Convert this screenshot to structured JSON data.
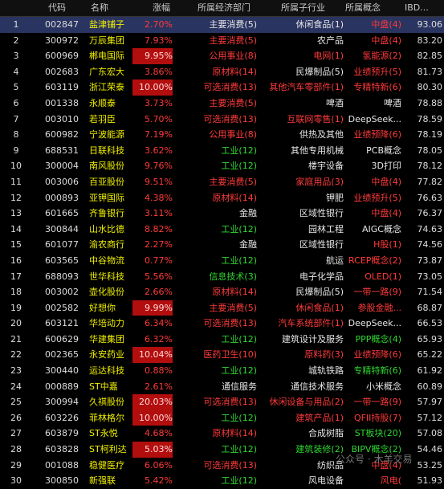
{
  "header": {
    "idx": "",
    "code": "代码",
    "name": "名称",
    "chg": "涨幅",
    "dept": "所属经济部门",
    "ind": "所属子行业",
    "con": "所属概念",
    "ibd": "IBD..."
  },
  "rows": [
    {
      "idx": "1",
      "code": "002847",
      "name": "盐津铺子",
      "chg": "2.70%",
      "dept": "主要消费(5)",
      "deptc": "white",
      "ind": "休闲食品(1)",
      "indc": "white",
      "con": "中盘(4)",
      "conc": "red",
      "ibd": "93.06",
      "sel": true
    },
    {
      "idx": "2",
      "code": "300972",
      "name": "万辰集团",
      "chg": "7.93%",
      "dept": "主要消费(5)",
      "deptc": "red",
      "ind": "农产品",
      "indc": "white",
      "con": "中盘(4)",
      "conc": "red",
      "ibd": "83.20"
    },
    {
      "idx": "3",
      "code": "600969",
      "name": "郴电国际",
      "chg": "9.95%",
      "hl": true,
      "dept": "公用事业(8)",
      "deptc": "red",
      "ind": "电网(1)",
      "indc": "red",
      "con": "氢能源(2)",
      "conc": "red",
      "ibd": "82.85"
    },
    {
      "idx": "4",
      "code": "002683",
      "name": "广东宏大",
      "chg": "3.86%",
      "dept": "原材料(14)",
      "deptc": "red",
      "ind": "民爆制品(5)",
      "indc": "white",
      "con": "业绩预升(5)",
      "conc": "red",
      "ibd": "81.73"
    },
    {
      "idx": "5",
      "code": "603119",
      "name": "浙江荣泰",
      "chg": "10.00%",
      "hl": true,
      "dept": "可选消费(13)",
      "deptc": "red",
      "ind": "其他汽车零部件(1)",
      "indc": "red",
      "con": "专精特新(6)",
      "conc": "red",
      "ibd": "80.30"
    },
    {
      "idx": "6",
      "code": "001338",
      "name": "永顺泰",
      "chg": "3.73%",
      "dept": "主要消费(5)",
      "deptc": "red",
      "ind": "啤酒",
      "indc": "white",
      "con": "啤酒",
      "conc": "white",
      "ibd": "78.88"
    },
    {
      "idx": "7",
      "code": "003010",
      "name": "若羽臣",
      "chg": "5.70%",
      "dept": "可选消费(13)",
      "deptc": "red",
      "ind": "互联网零售(1)",
      "indc": "red",
      "con": "DeepSeek...",
      "conc": "white",
      "ibd": "78.59"
    },
    {
      "idx": "8",
      "code": "600982",
      "name": "宁波能源",
      "chg": "7.19%",
      "dept": "公用事业(8)",
      "deptc": "red",
      "ind": "供热及其他",
      "indc": "white",
      "con": "业绩预降(6)",
      "conc": "red",
      "ibd": "78.19"
    },
    {
      "idx": "9",
      "code": "688531",
      "name": "日联科技",
      "chg": "3.62%",
      "dept": "工业(12)",
      "deptc": "green",
      "ind": "其他专用机械",
      "indc": "white",
      "con": "PCB概念",
      "conc": "white",
      "ibd": "78.05"
    },
    {
      "idx": "10",
      "code": "300004",
      "name": "南风股份",
      "chg": "9.76%",
      "dept": "工业(12)",
      "deptc": "green",
      "ind": "楼宇设备",
      "indc": "white",
      "con": "3D打印",
      "conc": "white",
      "ibd": "78.12"
    },
    {
      "idx": "11",
      "code": "003006",
      "name": "百亚股份",
      "chg": "9.51%",
      "dept": "主要消费(5)",
      "deptc": "red",
      "ind": "家庭用品(3)",
      "indc": "red",
      "con": "中盘(4)",
      "conc": "red",
      "ibd": "77.82"
    },
    {
      "idx": "12",
      "code": "000893",
      "name": "亚钾国际",
      "chg": "4.38%",
      "dept": "原材料(14)",
      "deptc": "red",
      "ind": "钾肥",
      "indc": "white",
      "con": "业绩预升(5)",
      "conc": "red",
      "ibd": "76.63"
    },
    {
      "idx": "13",
      "code": "601665",
      "name": "齐鲁银行",
      "chg": "3.11%",
      "dept": "金融",
      "deptc": "white",
      "ind": "区域性银行",
      "indc": "white",
      "con": "中盘(4)",
      "conc": "red",
      "ibd": "76.37"
    },
    {
      "idx": "14",
      "code": "300844",
      "name": "山水比德",
      "chg": "8.82%",
      "dept": "工业(12)",
      "deptc": "green",
      "ind": "园林工程",
      "indc": "white",
      "con": "AIGC概念",
      "conc": "white",
      "ibd": "74.63"
    },
    {
      "idx": "15",
      "code": "601077",
      "name": "渝农商行",
      "chg": "2.27%",
      "dept": "金融",
      "deptc": "white",
      "ind": "区域性银行",
      "indc": "white",
      "con": "H股(1)",
      "conc": "red",
      "ibd": "74.56"
    },
    {
      "idx": "16",
      "code": "603565",
      "name": "中谷物流",
      "chg": "0.77%",
      "dept": "工业(12)",
      "deptc": "green",
      "ind": "航运",
      "indc": "white",
      "con": "RCEP概念(2)",
      "conc": "red",
      "ibd": "73.87"
    },
    {
      "idx": "17",
      "code": "688093",
      "name": "世华科技",
      "chg": "5.56%",
      "dept": "信息技术(3)",
      "deptc": "green",
      "ind": "电子化学品",
      "indc": "white",
      "con": "OLED(1)",
      "conc": "red",
      "ibd": "73.05"
    },
    {
      "idx": "18",
      "code": "003002",
      "name": "壶化股份",
      "chg": "2.66%",
      "dept": "原材料(14)",
      "deptc": "red",
      "ind": "民爆制品(5)",
      "indc": "white",
      "con": "一带一路(9)",
      "conc": "red",
      "ibd": "71.54"
    },
    {
      "idx": "19",
      "code": "002582",
      "name": "好想你",
      "chg": "9.99%",
      "hl": true,
      "dept": "主要消费(5)",
      "deptc": "red",
      "ind": "休闲食品(1)",
      "indc": "red",
      "con": "参股金融...",
      "conc": "red",
      "ibd": "68.87"
    },
    {
      "idx": "20",
      "code": "603121",
      "name": "华培动力",
      "chg": "6.34%",
      "dept": "可选消费(13)",
      "deptc": "red",
      "ind": "汽车系统部件(1)",
      "indc": "red",
      "con": "DeepSeek...",
      "conc": "white",
      "ibd": "66.53"
    },
    {
      "idx": "21",
      "code": "600629",
      "name": "华建集团",
      "chg": "6.32%",
      "dept": "工业(12)",
      "deptc": "green",
      "ind": "建筑设计及服务",
      "indc": "white",
      "con": "PPP概念(4)",
      "conc": "green",
      "ibd": "65.93"
    },
    {
      "idx": "22",
      "code": "002365",
      "name": "永安药业",
      "chg": "10.04%",
      "hl": true,
      "dept": "医药卫生(10)",
      "deptc": "red",
      "ind": "原料药(3)",
      "indc": "red",
      "con": "业绩预降(6)",
      "conc": "red",
      "ibd": "65.22"
    },
    {
      "idx": "23",
      "code": "300440",
      "name": "运达科技",
      "chg": "0.88%",
      "dept": "工业(12)",
      "deptc": "green",
      "ind": "城轨铁路",
      "indc": "white",
      "con": "专精特新(6)",
      "conc": "green",
      "ibd": "61.92"
    },
    {
      "idx": "24",
      "code": "000889",
      "name": "ST中嘉",
      "chg": "2.61%",
      "dept": "通信服务",
      "deptc": "white",
      "ind": "通信技术服务",
      "indc": "white",
      "con": "小米概念",
      "conc": "white",
      "ibd": "60.89"
    },
    {
      "idx": "25",
      "code": "300994",
      "name": "久祺股份",
      "chg": "20.03%",
      "hl": true,
      "dept": "可选消费(13)",
      "deptc": "red",
      "ind": "休闲设备与用品(2)",
      "indc": "red",
      "con": "一带一路(9)",
      "conc": "red",
      "ibd": "57.97"
    },
    {
      "idx": "26",
      "code": "603226",
      "name": "菲林格尔",
      "chg": "10.00%",
      "hl": true,
      "dept": "工业(12)",
      "deptc": "green",
      "ind": "建筑产品(1)",
      "indc": "red",
      "con": "QFII持股(7)",
      "conc": "red",
      "ibd": "57.12"
    },
    {
      "idx": "27",
      "code": "603879",
      "name": "ST永悦",
      "chg": "4.68%",
      "dept": "原材料(14)",
      "deptc": "red",
      "ind": "合成树脂",
      "indc": "white",
      "con": "ST板块(20)",
      "conc": "green",
      "ibd": "57.08"
    },
    {
      "idx": "28",
      "code": "603828",
      "name": "ST柯利达",
      "chg": "5.03%",
      "hl": true,
      "dept": "工业(12)",
      "deptc": "green",
      "ind": "建筑装修(2)",
      "indc": "green",
      "con": "BIPV概念(2)",
      "conc": "green",
      "ibd": "54.46"
    },
    {
      "idx": "29",
      "code": "001088",
      "name": "稳健医疗",
      "chg": "6.06%",
      "dept": "可选消费(13)",
      "deptc": "red",
      "ind": "纺织品",
      "indc": "white",
      "con": "中盘(4)",
      "conc": "red",
      "ibd": "53.25"
    },
    {
      "idx": "30",
      "code": "300850",
      "name": "新强联",
      "chg": "5.42%",
      "dept": "工业(12)",
      "deptc": "green",
      "ind": "风电设备",
      "indc": "white",
      "con": "风电(",
      "conc": "red",
      "ibd": "51.93"
    }
  ],
  "watermark": "公众号 · 木羊交易"
}
